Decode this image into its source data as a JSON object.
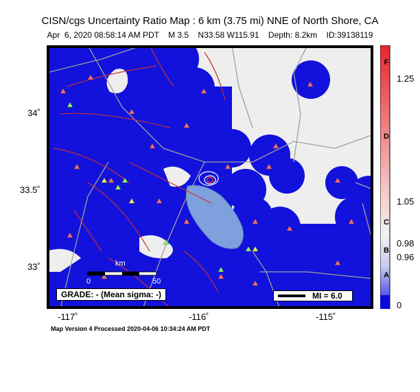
{
  "header": {
    "title": "CISN/cgs Uncertainty Ratio Map : 6 km (3.75 mi) NNE of North Shore, CA",
    "subtitle": "Apr  6, 2020 08:58:14 AM PDT    M 3.5    N33.58 W115.91    Depth: 8.2km    ID:39138119"
  },
  "map": {
    "lat_labels": [
      "34˚",
      "33.5˚",
      "33˚"
    ],
    "lon_labels": [
      "-117˚",
      "-116˚",
      "-115˚"
    ],
    "epicenter": {
      "lat": 33.58,
      "lon": -115.91
    },
    "scale_bar": {
      "label_top": "km",
      "label_zero": "0",
      "label_end": "50"
    },
    "grade_text": "GRADE: - (Mean sigma: -)",
    "mi_text": "MI = 6.0"
  },
  "colorbar": {
    "letters": [
      "F",
      "D",
      "C",
      "B",
      "A"
    ],
    "values": [
      "1.25",
      "1.05",
      "0.98",
      "0.96",
      "0"
    ],
    "colors": {
      "top": "#e8252b",
      "mid": "#f2f2f2",
      "bottom": "#0b0bd8"
    }
  },
  "footer": {
    "text": "Map Version 4 Processed 2020-04-06 10:34:24 AM PDT"
  },
  "colors": {
    "low_uncertainty": "#1010dd",
    "background_land": "#eeeeee",
    "lake": "#7ea0dc",
    "faults": "#c83030",
    "roads": "#a0a0a0",
    "station_triangle": "#f07070",
    "station_green": "#90f070",
    "station_yellow": "#f0f060"
  }
}
